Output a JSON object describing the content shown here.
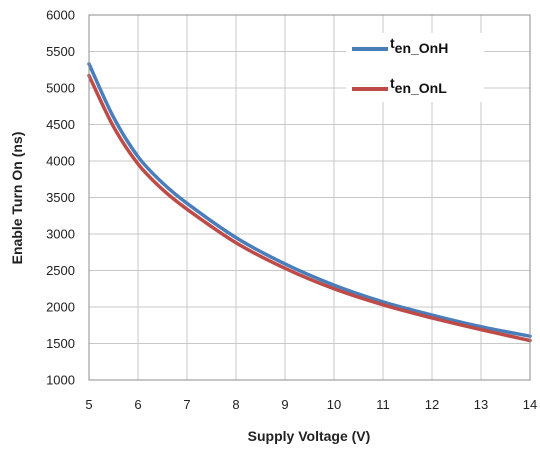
{
  "chart_data": {
    "type": "line",
    "title": "",
    "xlabel": "Supply Voltage (V)",
    "ylabel": "Enable Turn On (ns)",
    "xlim": [
      5,
      14
    ],
    "ylim": [
      1000,
      6000
    ],
    "x_ticks": [
      "5",
      "6",
      "7",
      "8",
      "9",
      "10",
      "11",
      "12",
      "13",
      "14"
    ],
    "y_ticks": [
      "1000",
      "1500",
      "2000",
      "2500",
      "3000",
      "3500",
      "4000",
      "4500",
      "5000",
      "5500",
      "6000"
    ],
    "grid": true,
    "legend_position": "top-right",
    "series": [
      {
        "name": "t",
        "subscript": "en_OnH",
        "color": "#4a7ebb",
        "x": [
          5,
          5.5,
          6,
          6.5,
          7,
          8,
          9,
          10,
          11,
          12,
          13,
          14
        ],
        "y": [
          5330,
          4600,
          4060,
          3700,
          3420,
          2950,
          2590,
          2300,
          2070,
          1890,
          1730,
          1600
        ]
      },
      {
        "name": "t",
        "subscript": "en_OnL",
        "color": "#be4b48",
        "x": [
          5,
          5.5,
          6,
          6.5,
          7,
          8,
          9,
          10,
          11,
          12,
          13,
          14
        ],
        "y": [
          5170,
          4470,
          3960,
          3610,
          3340,
          2880,
          2530,
          2250,
          2030,
          1850,
          1690,
          1540
        ]
      }
    ]
  }
}
